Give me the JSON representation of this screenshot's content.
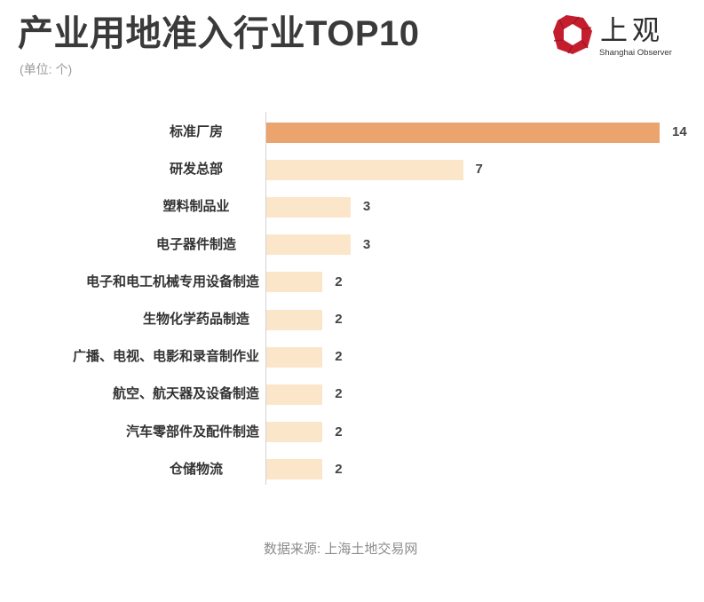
{
  "logo": {
    "icon": "shanghai-observer-logo-icon",
    "name": "上观",
    "subtitle": "Shanghai Observer",
    "color": "#C41E2E"
  },
  "chart_data": {
    "type": "bar",
    "orientation": "horizontal",
    "title": "产业用地准入行业TOP10",
    "unit": "(单位: 个)",
    "categories": [
      "标准厂房",
      "研发总部",
      "塑料制品业",
      "电子器件制造",
      "电子和电工机械专用设备制造",
      "生物化学药品制造",
      "广播、电视、电影和录音制作业",
      "航空、航天器及设备制造",
      "汽车零部件及配件制造",
      "仓储物流"
    ],
    "values": [
      14,
      7,
      3,
      3,
      2,
      2,
      2,
      2,
      2,
      2
    ],
    "xlim": [
      0,
      14
    ],
    "grid": false,
    "colors": [
      "#EBA46E",
      "#FCE6C9",
      "#FCE6C9",
      "#FCE6C9",
      "#FCE6C9",
      "#FCE6C9",
      "#FCE6C9",
      "#FCE6C9",
      "#FCE6C9",
      "#FCE6C9"
    ],
    "axis_color": "#D2D2D2"
  },
  "footer": {
    "source": "数据来源: 上海土地交易网"
  }
}
